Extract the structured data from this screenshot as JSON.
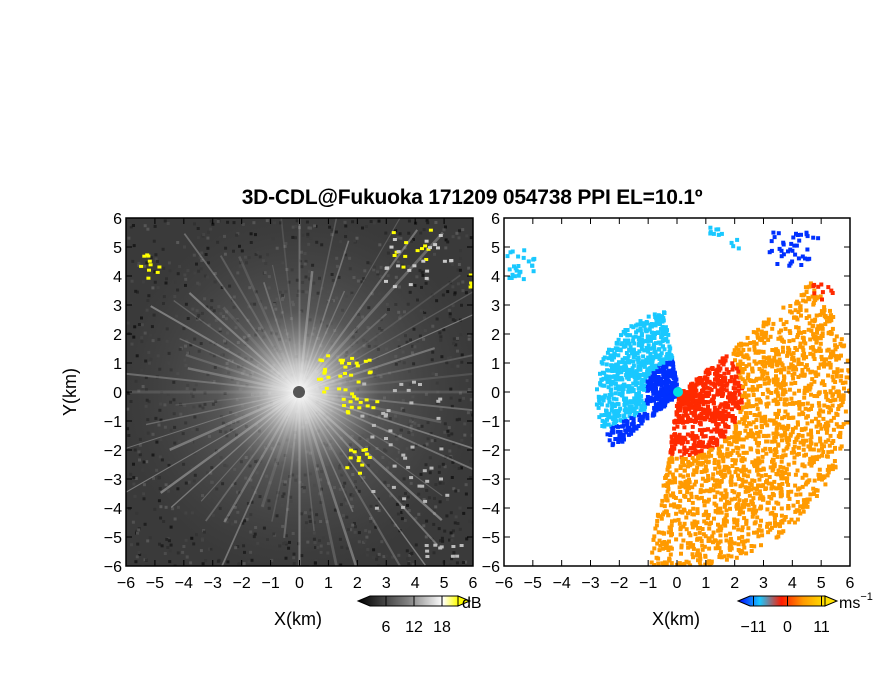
{
  "title": "3D-CDL@Fukuoka 171209 054738 PPI EL=10.1º",
  "colors": {
    "yellow": "#ffff00",
    "vel_neg_dark": "#0030ff",
    "vel_neg_light": "#19c8ff",
    "vel_zero": "#00e0e0",
    "vel_pos_red": "#ff2a00",
    "vel_pos_orange": "#ff9a00"
  },
  "chart_data": [
    {
      "type": "heatmap",
      "field": "SNR / intensity",
      "xlabel": "X(km)",
      "ylabel": "Y(km)",
      "xlim": [
        -6,
        6
      ],
      "ylim": [
        -6,
        6
      ],
      "x_ticks": [
        "−6",
        "−5",
        "−4",
        "−3",
        "−2",
        "−1",
        "0",
        "1",
        "2",
        "3",
        "4",
        "5",
        "6"
      ],
      "y_ticks": [
        "6",
        "5",
        "4",
        "3",
        "2",
        "1",
        "0",
        "−1",
        "−2",
        "−3",
        "−4",
        "−5",
        "−6"
      ],
      "colorbar": {
        "unit": "dB",
        "ticks": [
          "6",
          "12",
          "18"
        ],
        "values": [
          6,
          12,
          18
        ],
        "range": [
          0,
          24
        ],
        "colormap": "gray-to-yellow"
      }
    },
    {
      "type": "heatmap",
      "field": "radial velocity",
      "xlabel": "X(km)",
      "xlim": [
        -6,
        6
      ],
      "ylim": [
        -6,
        6
      ],
      "x_ticks": [
        "−6",
        "−5",
        "−4",
        "−3",
        "−2",
        "−1",
        "0",
        "1",
        "2",
        "3",
        "4",
        "5",
        "6"
      ],
      "y_ticks": [
        "6",
        "5",
        "4",
        "3",
        "2",
        "1",
        "0",
        "−1",
        "−2",
        "−3",
        "−4",
        "−5",
        "−6"
      ],
      "colorbar": {
        "unit": "ms",
        "unit_exp": "−1",
        "ticks": [
          "−11",
          "0",
          "11"
        ],
        "values": [
          -11,
          0,
          11
        ],
        "range": [
          -16,
          16
        ],
        "colormap": "blue-cyan-red-orange"
      }
    }
  ]
}
